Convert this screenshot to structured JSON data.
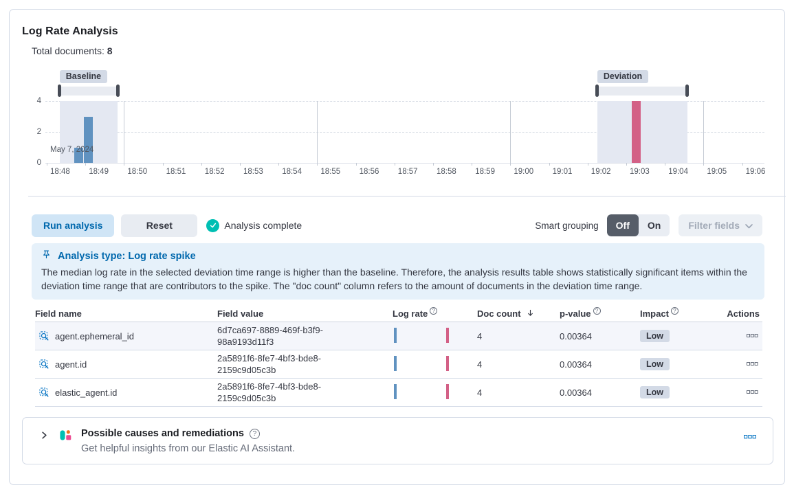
{
  "panel": {
    "title": "Log Rate Analysis",
    "total_documents_label": "Total documents:",
    "total_documents_value": "8"
  },
  "chart": {
    "y_ticks": [
      "4",
      "2",
      "0"
    ],
    "x_ticks": [
      "18:48",
      "18:49",
      "18:50",
      "18:51",
      "18:52",
      "18:53",
      "18:54",
      "18:55",
      "18:56",
      "18:57",
      "18:58",
      "18:59",
      "19:00",
      "19:01",
      "19:02",
      "19:03",
      "19:04",
      "19:05",
      "19:06"
    ],
    "date_label": "May 7, 2024"
  },
  "chart_data": {
    "type": "bar",
    "title": "Document count over time",
    "ylim": [
      0,
      4
    ],
    "y_gridlines": [
      0,
      2,
      4
    ],
    "x_axis": {
      "start": "18:48",
      "end": "19:06",
      "date": "May 7, 2024",
      "tick_interval_minutes": 1,
      "major_gridlines": [
        "18:55",
        "19:00",
        "19:05"
      ]
    },
    "bars": [
      {
        "time": "18:48:50",
        "count": 1,
        "series": "baseline"
      },
      {
        "time": "18:49:05",
        "count": 3,
        "series": "baseline"
      },
      {
        "time": "19:03:15",
        "count": 4,
        "series": "deviation"
      }
    ],
    "brushes": [
      {
        "label": "Baseline",
        "from": "18:48:20",
        "to": "18:49:50"
      },
      {
        "label": "Deviation",
        "from": "19:02:15",
        "to": "19:04:35"
      }
    ],
    "colors": {
      "baseline_bar": "#6092c0",
      "deviation_bar": "#d36086",
      "brush_region": "#e4e8f2"
    }
  },
  "controls": {
    "run_analysis": "Run analysis",
    "reset": "Reset",
    "status": "Analysis complete",
    "smart_grouping_label": "Smart grouping",
    "off": "Off",
    "on": "On",
    "filter_fields": "Filter fields"
  },
  "callout": {
    "title": "Analysis type: Log rate spike",
    "body": "The median log rate in the selected deviation time range is higher than the baseline. Therefore, the analysis results table shows statistically significant items within the deviation time range that are contributors to the spike. The \"doc count\" column refers to the amount of documents in the deviation time range."
  },
  "table": {
    "columns": [
      "Field name",
      "Field value",
      "Log rate",
      "Doc count",
      "p-value",
      "Impact",
      "Actions"
    ],
    "rows": [
      {
        "field_name": "agent.ephemeral_id",
        "field_value": "6d7ca697-8889-469f-b3f9-98a9193d11f3",
        "doc_count": "4",
        "p_value": "0.00364",
        "impact": "Low",
        "highlighted": true
      },
      {
        "field_name": "agent.id",
        "field_value": "2a5891f6-8fe7-4bf3-bde8-2159c9d05c3b",
        "doc_count": "4",
        "p_value": "0.00364",
        "impact": "Low",
        "highlighted": false
      },
      {
        "field_name": "elastic_agent.id",
        "field_value": "2a5891f6-8fe7-4bf3-bde8-2159c9d05c3b",
        "doc_count": "4",
        "p_value": "0.00364",
        "impact": "Low",
        "highlighted": false
      }
    ]
  },
  "accordion": {
    "title": "Possible causes and remediations",
    "subtitle": "Get helpful insights from our Elastic AI Assistant."
  },
  "colors": {
    "accent_primary": "#0071c2",
    "success_check": "#00bfb3",
    "ai_logo_teal": "#00bfb3",
    "ai_logo_orange": "#f0731d",
    "ai_logo_pink": "#ec4c92"
  }
}
